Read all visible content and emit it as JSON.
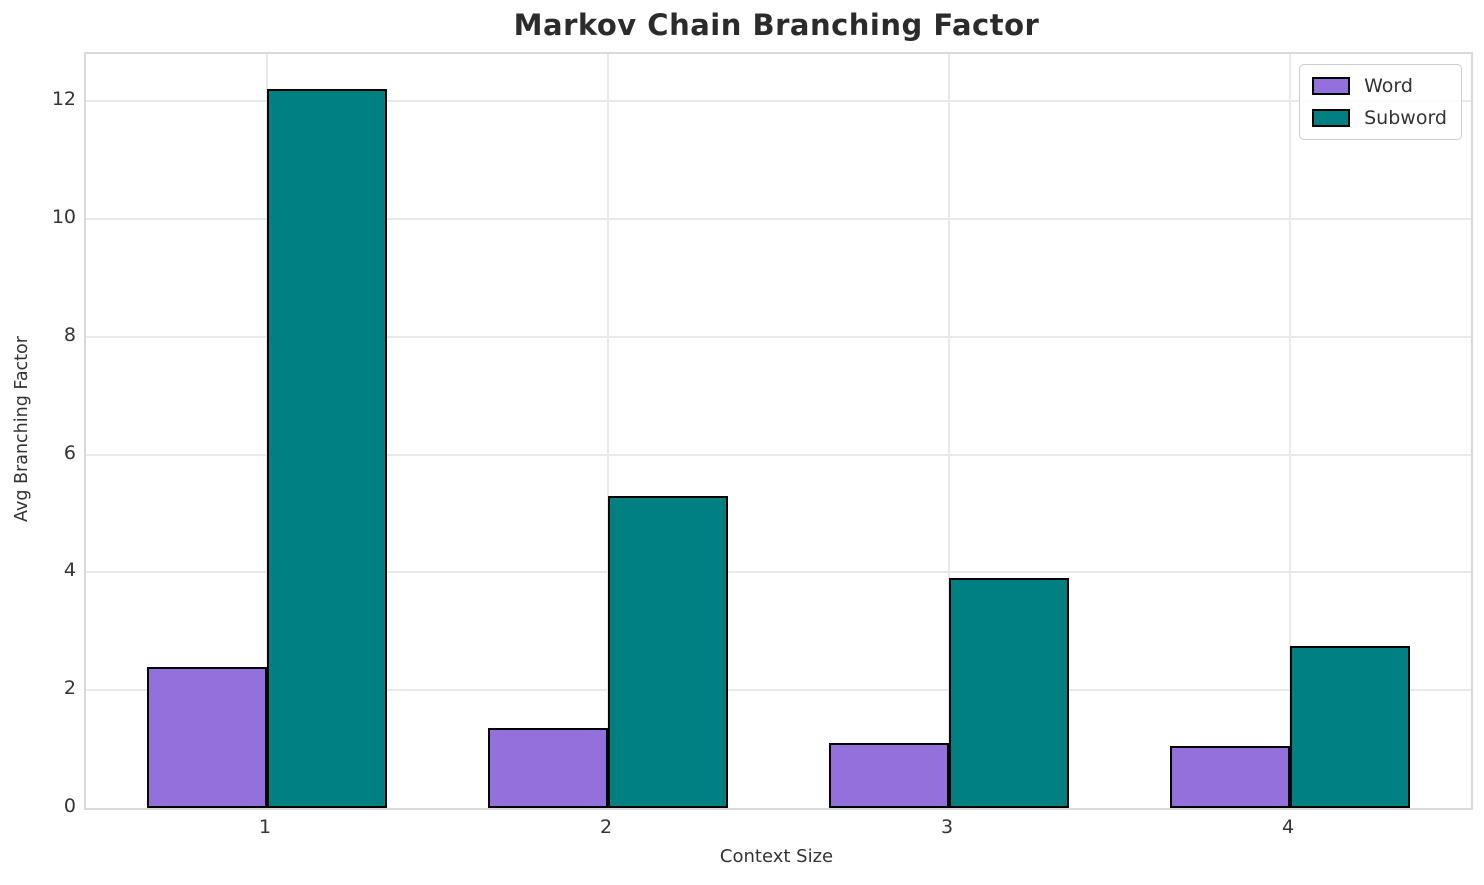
{
  "chart_data": {
    "type": "bar",
    "title": "Markov Chain Branching Factor",
    "xlabel": "Context Size",
    "ylabel": "Avg Branching Factor",
    "categories": [
      "1",
      "2",
      "3",
      "4"
    ],
    "series": [
      {
        "name": "Word",
        "color": "#9370DB",
        "values": [
          2.4,
          1.35,
          1.1,
          1.05
        ]
      },
      {
        "name": "Subword",
        "color": "#008080",
        "values": [
          12.2,
          5.3,
          3.9,
          2.75
        ]
      }
    ],
    "yticks": [
      0,
      2,
      4,
      6,
      8,
      10,
      12
    ],
    "ylim": [
      0,
      12.8
    ],
    "grid": true,
    "legend_position": "upper-right",
    "bar_edge_color": "#000000",
    "colors": {
      "background": "#ffffff",
      "grid": "#e9e9e9",
      "spine": "#d9d9d9",
      "tick_text": "#333333",
      "title_text": "#2b2b2b"
    }
  }
}
